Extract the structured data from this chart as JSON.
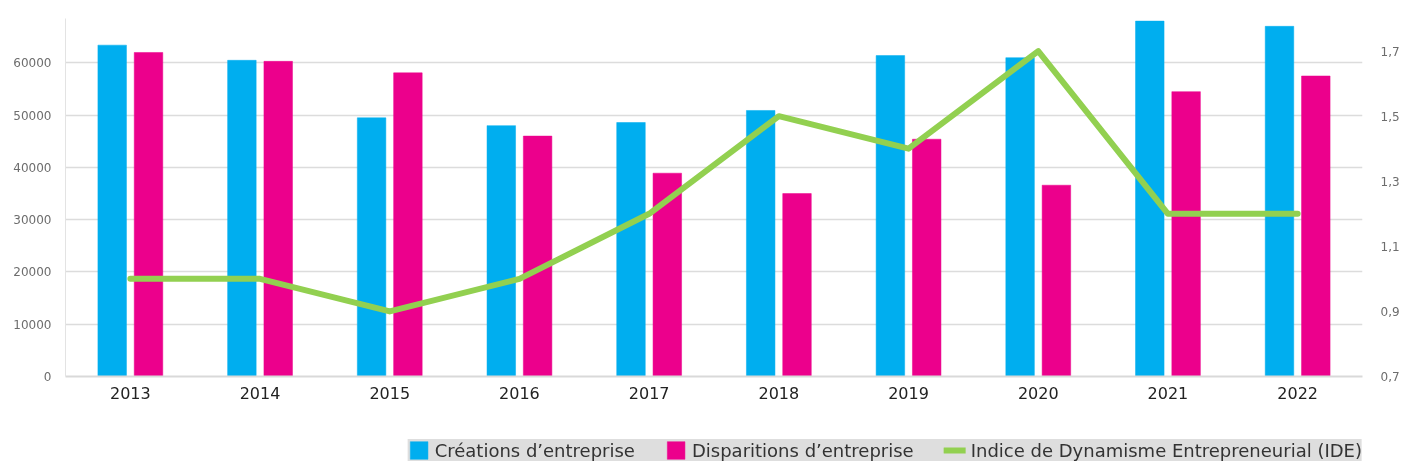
{
  "chart_data": {
    "type": "bar",
    "categories": [
      "2013",
      "2014",
      "2015",
      "2016",
      "2017",
      "2018",
      "2019",
      "2020",
      "2021",
      "2022"
    ],
    "series": [
      {
        "name": "Créations d’entreprise",
        "color": "#00aeef",
        "values": [
          63400,
          60500,
          49500,
          48000,
          48600,
          50900,
          61400,
          61000,
          68000,
          67000
        ]
      },
      {
        "name": "Disparitions d’entreprise",
        "color": "#ec008c",
        "values": [
          62000,
          60300,
          58100,
          46000,
          38900,
          35000,
          45400,
          36600,
          54500,
          57500
        ]
      },
      {
        "name": "Indice de Dynamisme Entrepreneurial (IDE)",
        "type": "line",
        "axis": "y2",
        "color": "#92d050",
        "values": [
          1.0,
          1.0,
          0.9,
          1.0,
          1.2,
          1.5,
          1.4,
          1.7,
          1.2,
          1.2
        ]
      }
    ],
    "ylim": [
      0,
      68500
    ],
    "yticks": [
      0,
      10000,
      20000,
      30000,
      40000,
      50000,
      60000
    ],
    "y2lim": [
      0.7,
      1.8
    ],
    "y2ticks": [
      {
        "value": 0.7,
        "label": "0,7"
      },
      {
        "value": 0.9,
        "label": "0,9"
      },
      {
        "value": 1.1,
        "label": "1,1"
      },
      {
        "value": 1.3,
        "label": "1,3"
      },
      {
        "value": 1.5,
        "label": "1,5"
      },
      {
        "value": 1.7,
        "label": "1,7"
      }
    ],
    "grid": "y",
    "legend": "bottom"
  }
}
